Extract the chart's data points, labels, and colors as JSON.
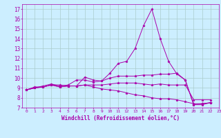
{
  "xlabel": "Windchill (Refroidissement éolien,°C)",
  "xlim": [
    -0.5,
    23
  ],
  "ylim": [
    7,
    17.5
  ],
  "yticks": [
    7,
    8,
    9,
    10,
    11,
    12,
    13,
    14,
    15,
    16,
    17
  ],
  "xticks": [
    0,
    1,
    2,
    3,
    4,
    5,
    6,
    7,
    8,
    9,
    10,
    11,
    12,
    13,
    14,
    15,
    16,
    17,
    18,
    19,
    20,
    21,
    22,
    23
  ],
  "background_color": "#cceeff",
  "grid_color": "#aacccc",
  "line_color": "#aa00aa",
  "series": [
    [
      8.8,
      9.1,
      9.1,
      9.3,
      9.3,
      9.2,
      9.2,
      10.1,
      9.8,
      9.7,
      10.5,
      11.5,
      11.7,
      13.0,
      15.3,
      17.0,
      14.0,
      11.7,
      10.4,
      9.8,
      7.3,
      7.3,
      7.5
    ],
    [
      8.8,
      9.0,
      9.2,
      9.4,
      9.2,
      9.3,
      9.8,
      9.8,
      9.6,
      9.7,
      10.0,
      10.2,
      10.2,
      10.2,
      10.3,
      10.3,
      10.4,
      10.4,
      10.5,
      9.8,
      7.3,
      7.4,
      7.5
    ],
    [
      8.8,
      9.0,
      9.1,
      9.3,
      9.1,
      9.2,
      9.2,
      9.3,
      9.3,
      9.3,
      9.4,
      9.5,
      9.5,
      9.5,
      9.4,
      9.3,
      9.4,
      9.3,
      9.3,
      9.3,
      7.8,
      7.8,
      7.8
    ],
    [
      8.8,
      9.0,
      9.1,
      9.3,
      9.1,
      9.2,
      9.2,
      9.3,
      9.1,
      8.9,
      8.8,
      8.7,
      8.5,
      8.3,
      8.2,
      8.0,
      7.9,
      7.9,
      7.8,
      7.6,
      7.4,
      7.4,
      7.5
    ]
  ],
  "x_values": [
    0,
    1,
    2,
    3,
    4,
    5,
    6,
    7,
    8,
    9,
    10,
    11,
    12,
    13,
    14,
    15,
    16,
    17,
    18,
    19,
    20,
    21,
    22
  ]
}
